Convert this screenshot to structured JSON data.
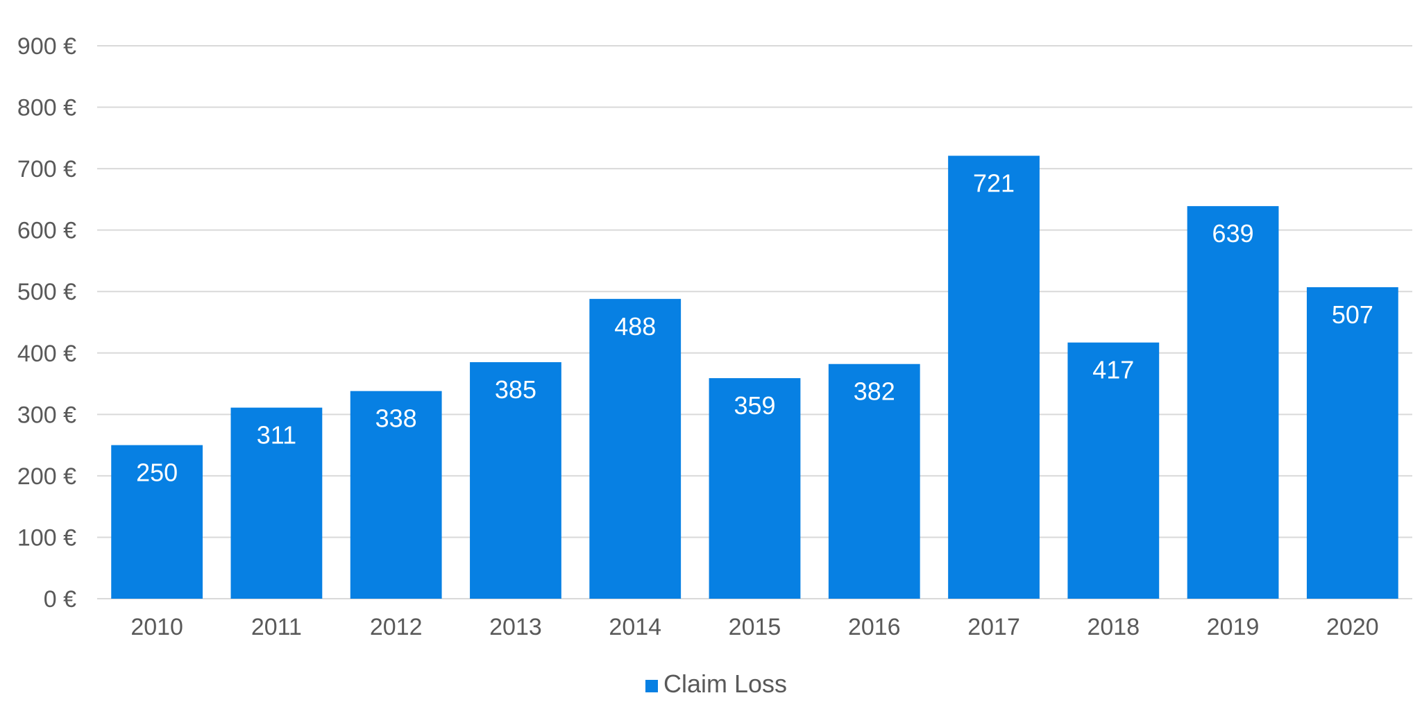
{
  "chart_data": {
    "type": "bar",
    "categories": [
      "2010",
      "2011",
      "2012",
      "2013",
      "2014",
      "2015",
      "2016",
      "2017",
      "2018",
      "2019",
      "2020"
    ],
    "series": [
      {
        "name": "Claim Loss",
        "values": [
          250,
          311,
          338,
          385,
          488,
          359,
          382,
          721,
          417,
          639,
          507
        ],
        "color": "#0780e3"
      }
    ],
    "data_labels": [
      "250",
      "311",
      "338",
      "385",
      "488",
      "359",
      "382",
      "721",
      "417",
      "639",
      "507"
    ],
    "ylim": [
      0,
      900
    ],
    "y_ticks": [
      0,
      100,
      200,
      300,
      400,
      500,
      600,
      700,
      800,
      900
    ],
    "y_tick_labels": [
      "0 €",
      "100 €",
      "200 €",
      "300 €",
      "400 €",
      "500 €",
      "600 €",
      "700 €",
      "800 €",
      "900 €"
    ],
    "grid": true,
    "legend_position": "bottom-center",
    "colors": {
      "bar": "#0780e3",
      "grid": "#d9d9d9",
      "axis_text": "#595959",
      "data_label": "#ffffff"
    }
  }
}
